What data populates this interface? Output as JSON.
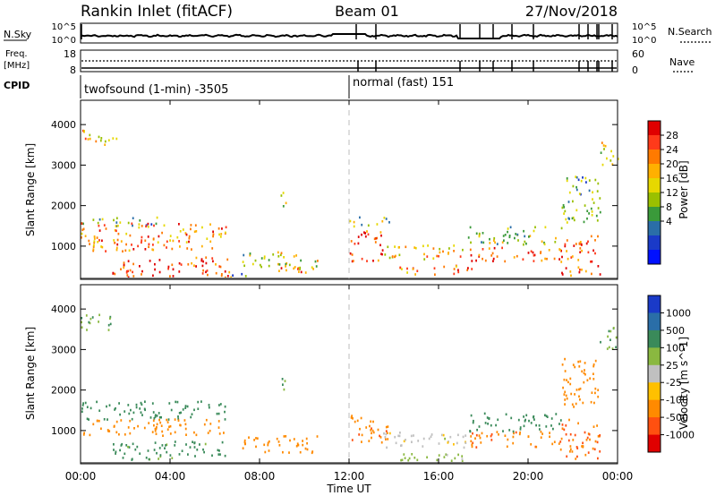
{
  "header": {
    "site": "Rankin Inlet (fitACF)",
    "beam": "Beam 01",
    "date": "27/Nov/2018"
  },
  "noise_panel": {
    "left_label": "N.Sky",
    "right_label": "N.Search",
    "left_ticks": [
      "10^5",
      "10^0"
    ],
    "right_ticks": [
      "10^5",
      "10^0"
    ]
  },
  "freq_panel": {
    "left_label_1": "Freq.",
    "left_label_2": "[MHz]",
    "left_ticks": [
      "18",
      "8"
    ],
    "right_label": "Nave",
    "right_ticks": [
      "60",
      "0"
    ]
  },
  "cpid": {
    "label": "CPID",
    "modes": [
      {
        "text": "twofsound (1-min) -3505",
        "start_hour": 0
      },
      {
        "text": "normal (fast) 151",
        "start_hour": 12
      }
    ]
  },
  "chart_data": [
    {
      "type": "heatmap",
      "quantity": "Power",
      "ylabel": "Slant Range [km]",
      "ylim": [
        180,
        4600
      ],
      "y_ticks": [
        "4000",
        "3000",
        "2000",
        "1000"
      ],
      "colorbar": {
        "label": "Power [dB]",
        "ticks": [
          "28",
          "24",
          "20",
          "16",
          "12",
          "8",
          "4"
        ],
        "colors": [
          "#e00000",
          "#ff3a1a",
          "#ff7a00",
          "#ffb000",
          "#e6d800",
          "#9ac000",
          "#3a9a3a",
          "#2a6ea8",
          "#1a3ac8",
          "#0010ff"
        ]
      },
      "regions": [
        {
          "x": [
            0.0,
            1.6
          ],
          "y": [
            3500,
            3900
          ],
          "value": 20
        },
        {
          "x": [
            0.0,
            3.5
          ],
          "y": [
            1500,
            1750
          ],
          "value": 12
        },
        {
          "x": [
            0.0,
            6.5
          ],
          "y": [
            900,
            1600
          ],
          "value": 24
        },
        {
          "x": [
            1.4,
            6.7
          ],
          "y": [
            250,
            750
          ],
          "value": 28
        },
        {
          "x": [
            6.7,
            7.4
          ],
          "y": [
            180,
            350
          ],
          "value": 8
        },
        {
          "x": [
            7.2,
            10.6
          ],
          "y": [
            450,
            900
          ],
          "value": 16
        },
        {
          "x": [
            8.8,
            10.2
          ],
          "y": [
            280,
            500
          ],
          "value": 26
        },
        {
          "x": [
            8.9,
            9.2
          ],
          "y": [
            1900,
            2400
          ],
          "value": 16
        },
        {
          "x": [
            12.0,
            13.5
          ],
          "y": [
            650,
            1400
          ],
          "value": 28
        },
        {
          "x": [
            12.0,
            13.8
          ],
          "y": [
            1500,
            1750
          ],
          "value": 14
        },
        {
          "x": [
            13.5,
            17.3
          ],
          "y": [
            700,
            1050
          ],
          "value": 20
        },
        {
          "x": [
            14.2,
            17.5
          ],
          "y": [
            300,
            550
          ],
          "value": 24
        },
        {
          "x": [
            17.3,
            21.5
          ],
          "y": [
            650,
            1000
          ],
          "value": 28
        },
        {
          "x": [
            17.3,
            21.5
          ],
          "y": [
            1050,
            1500
          ],
          "value": 14
        },
        {
          "x": [
            21.4,
            23.2
          ],
          "y": [
            300,
            1300
          ],
          "value": 26
        },
        {
          "x": [
            21.5,
            23.2
          ],
          "y": [
            1600,
            2800
          ],
          "value": 12
        },
        {
          "x": [
            23.2,
            24.0
          ],
          "y": [
            3000,
            3600
          ],
          "value": 18
        }
      ]
    },
    {
      "type": "heatmap",
      "quantity": "Velocity",
      "ylabel": "Slant Range [km]",
      "xlabel": "Time UT",
      "ylim": [
        180,
        4600
      ],
      "y_ticks": [
        "4000",
        "3000",
        "2000",
        "1000"
      ],
      "x_ticks": [
        "00:00",
        "04:00",
        "08:00",
        "12:00",
        "16:00",
        "20:00",
        "00:00"
      ],
      "xlim": [
        0,
        24
      ],
      "colorbar": {
        "label": "Velocity [m s^-1]",
        "ticks": [
          "1000",
          "500",
          "100",
          "25",
          "-25",
          "-100",
          "-500",
          "-1000"
        ],
        "colors": [
          "#1a3ac8",
          "#2a6ea8",
          "#3a8a5a",
          "#8ab840",
          "#c0c0c0",
          "#ffc000",
          "#ff8a00",
          "#ff5010",
          "#e00000"
        ]
      },
      "regions": [
        {
          "x": [
            0.0,
            1.6
          ],
          "y": [
            3500,
            3900
          ],
          "value": 100
        },
        {
          "x": [
            0.0,
            6.5
          ],
          "y": [
            1300,
            1750
          ],
          "value": 200
        },
        {
          "x": [
            0.0,
            6.5
          ],
          "y": [
            900,
            1300
          ],
          "value": -300
        },
        {
          "x": [
            1.4,
            6.7
          ],
          "y": [
            300,
            750
          ],
          "value": 150
        },
        {
          "x": [
            7.2,
            10.6
          ],
          "y": [
            450,
            900
          ],
          "value": -200
        },
        {
          "x": [
            8.9,
            9.2
          ],
          "y": [
            1900,
            2400
          ],
          "value": 100
        },
        {
          "x": [
            12.0,
            13.8
          ],
          "y": [
            700,
            1400
          ],
          "value": -400
        },
        {
          "x": [
            13.5,
            17.3
          ],
          "y": [
            600,
            1000
          ],
          "value": 0
        },
        {
          "x": [
            14.2,
            17.5
          ],
          "y": [
            250,
            500
          ],
          "value": 50
        },
        {
          "x": [
            17.3,
            21.5
          ],
          "y": [
            600,
            1000
          ],
          "value": -400
        },
        {
          "x": [
            17.3,
            21.5
          ],
          "y": [
            1000,
            1450
          ],
          "value": 300
        },
        {
          "x": [
            21.4,
            23.2
          ],
          "y": [
            300,
            1300
          ],
          "value": -500
        },
        {
          "x": [
            21.5,
            23.2
          ],
          "y": [
            1600,
            2800
          ],
          "value": -300
        },
        {
          "x": [
            23.2,
            24.0
          ],
          "y": [
            3000,
            3600
          ],
          "value": 100
        }
      ]
    }
  ]
}
